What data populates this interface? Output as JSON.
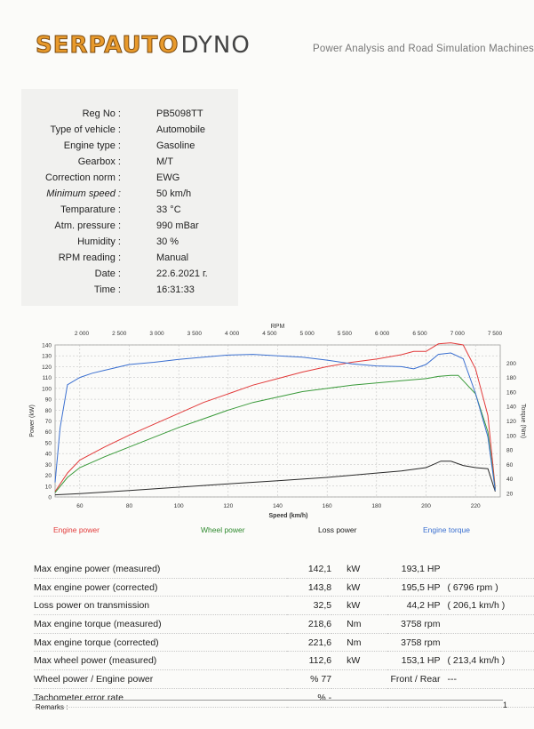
{
  "header": {
    "brand": "SERPAUTO",
    "brand_suffix": "DYNO",
    "tagline": "Power Analysis and Road Simulation Machines"
  },
  "vehicle_info": [
    {
      "label": "Reg No :",
      "value": "PB5098TT",
      "italic": false
    },
    {
      "label": "Type of vehicle :",
      "value": "Automobile",
      "italic": false
    },
    {
      "label": "Engine type :",
      "value": "Gasoline",
      "italic": false
    },
    {
      "label": "Gearbox :",
      "value": "M/T",
      "italic": false
    },
    {
      "label": "Correction norm :",
      "value": "EWG",
      "italic": false
    },
    {
      "label": "Minimum speed :",
      "value": "50  km/h",
      "italic": true
    },
    {
      "label": "Temparature :",
      "value": "33  °C",
      "italic": false
    },
    {
      "label": "Atm. pressure :",
      "value": "990  mBar",
      "italic": false
    },
    {
      "label": "Humidity :",
      "value": "30  %",
      "italic": false
    },
    {
      "label": "RPM reading :",
      "value": "Manual",
      "italic": false
    },
    {
      "label": "Date :",
      "value": "22.6.2021 г.",
      "italic": false
    },
    {
      "label": "Time :",
      "value": "16:31:33",
      "italic": false
    }
  ],
  "chart_data": {
    "type": "line",
    "top_axis_title": "RPM",
    "top_ticks": [
      "2 000",
      "2 500",
      "3 000",
      "3 500",
      "4 000",
      "4 500",
      "5 000",
      "5 500",
      "6 000",
      "6 500",
      "7 000",
      "7 500"
    ],
    "xlabel": "Speed (km/h)",
    "ylabel_left": "Power (kW)",
    "ylabel_right": "Torque (Nm)",
    "xlim": [
      50,
      230
    ],
    "ylim_left": [
      0,
      140
    ],
    "ylim_right": [
      15,
      225
    ],
    "x_ticks": [
      60,
      80,
      100,
      120,
      140,
      160,
      180,
      200,
      220
    ],
    "y_ticks_left": [
      0,
      10,
      20,
      30,
      40,
      50,
      60,
      70,
      80,
      90,
      100,
      110,
      120,
      130,
      140
    ],
    "y_ticks_right": [
      20,
      40,
      60,
      80,
      100,
      120,
      140,
      160,
      180,
      200
    ],
    "grid": true,
    "series": [
      {
        "name": "Engine power",
        "axis": "left",
        "color": "#e23a3a",
        "x": [
          50,
          55,
          60,
          70,
          80,
          90,
          100,
          110,
          120,
          130,
          140,
          150,
          160,
          170,
          180,
          190,
          195,
          200,
          205,
          210,
          215,
          220,
          225,
          228
        ],
        "y": [
          5,
          22,
          34,
          46,
          57,
          67,
          77,
          87,
          95,
          103,
          109,
          115,
          120,
          124,
          127,
          131,
          134,
          134,
          141,
          142,
          140,
          118,
          75,
          8
        ]
      },
      {
        "name": "Wheel power",
        "axis": "left",
        "color": "#3a9a3a",
        "x": [
          50,
          55,
          60,
          70,
          80,
          90,
          100,
          110,
          120,
          130,
          140,
          150,
          160,
          170,
          180,
          190,
          200,
          205,
          210,
          213,
          220,
          225,
          228
        ],
        "y": [
          4,
          18,
          27,
          37,
          46,
          55,
          64,
          72,
          80,
          87,
          92,
          97,
          100,
          103,
          105,
          107,
          109,
          111,
          112,
          112,
          95,
          60,
          7
        ]
      },
      {
        "name": "Loss power",
        "axis": "left",
        "color": "#2a2a2a",
        "x": [
          50,
          60,
          80,
          100,
          120,
          140,
          160,
          180,
          190,
          200,
          203,
          206,
          210,
          215,
          220,
          225,
          228
        ],
        "y": [
          2,
          3,
          6,
          9,
          12,
          15,
          18,
          22,
          24,
          27,
          30,
          33,
          33,
          29,
          27,
          26,
          5
        ]
      },
      {
        "name": "Engine torque",
        "axis": "right",
        "color": "#3a6fd0",
        "x": [
          50,
          52,
          55,
          60,
          65,
          70,
          80,
          90,
          100,
          110,
          120,
          130,
          140,
          150,
          160,
          170,
          180,
          190,
          195,
          200,
          205,
          210,
          215,
          220,
          225,
          228
        ],
        "y": [
          35,
          110,
          170,
          180,
          186,
          190,
          198,
          201,
          205,
          208,
          211,
          212,
          210,
          208,
          204,
          199,
          196,
          195,
          192,
          198,
          212,
          214,
          206,
          158,
          98,
          24
        ]
      }
    ],
    "legend": [
      "Engine power",
      "Wheel power",
      "Loss power",
      "Engine torque"
    ]
  },
  "results": [
    {
      "name": "Max engine power (measured)",
      "value": "142,1",
      "unit": "kW",
      "hp": "193,1 HP",
      "extra": ""
    },
    {
      "name": "Max engine power (corrected)",
      "value": "143,8",
      "unit": "kW",
      "hp": "195,5 HP",
      "extra": "( 6796 rpm )"
    },
    {
      "name": "Loss power on transmission",
      "value": "32,5",
      "unit": "kW",
      "hp": "44,2 HP",
      "extra": "( 206,1 km/h )"
    },
    {
      "name": "Max engine torque (measured)",
      "value": "218,6",
      "unit": "Nm",
      "hp": "3758 rpm",
      "extra": ""
    },
    {
      "name": "Max engine torque (corrected)",
      "value": "221,6",
      "unit": "Nm",
      "hp": "3758 rpm",
      "extra": ""
    },
    {
      "name": "Max wheel power (measured)",
      "value": "112,6",
      "unit": "kW",
      "hp": "153,1 HP",
      "extra": "( 213,4 km/h )"
    },
    {
      "name": "Wheel power / Engine power",
      "value": "% 77",
      "unit": "",
      "hp": "Front / Rear",
      "extra": "---"
    },
    {
      "name": "Tachometer error rate",
      "value": "% -",
      "unit": "",
      "hp": "",
      "extra": ""
    }
  ],
  "footer": {
    "remarks": "Remarks :",
    "page": "1"
  }
}
